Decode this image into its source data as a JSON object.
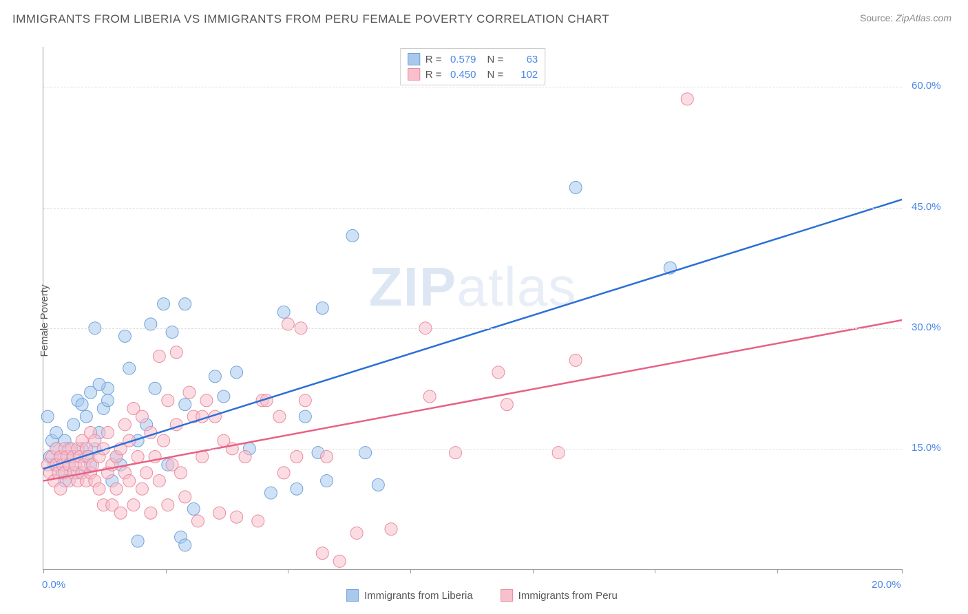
{
  "title": "IMMIGRANTS FROM LIBERIA VS IMMIGRANTS FROM PERU FEMALE POVERTY CORRELATION CHART",
  "source_label": "Source:",
  "source_value": "ZipAtlas.com",
  "ylabel": "Female Poverty",
  "watermark": {
    "zip": "ZIP",
    "atlas": "atlas"
  },
  "chart": {
    "type": "scatter",
    "background_color": "#ffffff",
    "grid_color": "#dddddd",
    "axis_color": "#999999",
    "xlim": [
      0,
      20
    ],
    "ylim": [
      0,
      65
    ],
    "xtick_positions": [
      0,
      2.85,
      5.7,
      8.55,
      11.4,
      14.25,
      17.1,
      20
    ],
    "xtick_labels": {
      "0": "0.0%",
      "20": "20.0%"
    },
    "ytick_positions": [
      15,
      30,
      45,
      60
    ],
    "ytick_labels": {
      "15": "15.0%",
      "30": "30.0%",
      "45": "45.0%",
      "60": "60.0%"
    },
    "series": [
      {
        "id": "liberia",
        "name": "Immigrants from Liberia",
        "color_fill": "#a8c8ec",
        "color_stroke": "#6fa3dd",
        "fill_opacity": 0.55,
        "marker_radius": 9,
        "R": "0.579",
        "N": "63",
        "trend": {
          "x1": 0,
          "y1": 12.5,
          "x2": 20,
          "y2": 46,
          "color": "#2b6fd6",
          "width": 2.5
        },
        "points": [
          [
            0.1,
            19
          ],
          [
            0.15,
            14
          ],
          [
            0.2,
            16
          ],
          [
            0.25,
            13
          ],
          [
            0.3,
            15
          ],
          [
            0.3,
            17
          ],
          [
            0.4,
            14
          ],
          [
            0.45,
            12
          ],
          [
            0.5,
            16
          ],
          [
            0.5,
            11
          ],
          [
            0.6,
            13
          ],
          [
            0.6,
            15
          ],
          [
            0.7,
            14
          ],
          [
            0.7,
            18
          ],
          [
            0.8,
            12
          ],
          [
            0.8,
            21
          ],
          [
            0.9,
            15
          ],
          [
            0.9,
            20.5
          ],
          [
            1.0,
            14
          ],
          [
            1.0,
            19
          ],
          [
            1.1,
            13
          ],
          [
            1.1,
            22
          ],
          [
            1.2,
            15
          ],
          [
            1.2,
            30
          ],
          [
            1.3,
            17
          ],
          [
            1.4,
            20
          ],
          [
            1.5,
            21
          ],
          [
            1.5,
            22.5
          ],
          [
            1.6,
            11
          ],
          [
            1.7,
            14
          ],
          [
            1.8,
            13
          ],
          [
            1.9,
            29
          ],
          [
            2.0,
            25
          ],
          [
            2.2,
            16
          ],
          [
            2.2,
            3.5
          ],
          [
            2.4,
            18
          ],
          [
            2.5,
            30.5
          ],
          [
            2.8,
            33
          ],
          [
            2.9,
            13
          ],
          [
            3.0,
            29.5
          ],
          [
            3.2,
            4
          ],
          [
            3.3,
            20.5
          ],
          [
            3.3,
            33
          ],
          [
            3.5,
            7.5
          ],
          [
            3.3,
            3
          ],
          [
            4.0,
            24
          ],
          [
            4.5,
            24.5
          ],
          [
            4.8,
            15
          ],
          [
            5.3,
            9.5
          ],
          [
            5.6,
            32
          ],
          [
            5.9,
            10
          ],
          [
            6.1,
            19
          ],
          [
            6.4,
            14.5
          ],
          [
            6.5,
            32.5
          ],
          [
            6.6,
            11
          ],
          [
            7.2,
            41.5
          ],
          [
            7.5,
            14.5
          ],
          [
            7.8,
            10.5
          ],
          [
            12.4,
            47.5
          ],
          [
            14.6,
            37.5
          ],
          [
            2.6,
            22.5
          ],
          [
            4.2,
            21.5
          ],
          [
            1.3,
            23
          ]
        ]
      },
      {
        "id": "peru",
        "name": "Immigrants from Peru",
        "color_fill": "#f7c0cc",
        "color_stroke": "#e98ba1",
        "fill_opacity": 0.55,
        "marker_radius": 9,
        "R": "0.450",
        "N": "102",
        "trend": {
          "x1": 0,
          "y1": 11,
          "x2": 20,
          "y2": 31,
          "color": "#e86185",
          "width": 2.5
        },
        "points": [
          [
            0.1,
            13
          ],
          [
            0.15,
            12
          ],
          [
            0.2,
            14
          ],
          [
            0.25,
            11
          ],
          [
            0.3,
            13
          ],
          [
            0.3,
            15
          ],
          [
            0.35,
            12
          ],
          [
            0.4,
            14
          ],
          [
            0.4,
            10
          ],
          [
            0.45,
            13
          ],
          [
            0.5,
            12
          ],
          [
            0.5,
            15
          ],
          [
            0.55,
            14
          ],
          [
            0.6,
            11
          ],
          [
            0.6,
            13
          ],
          [
            0.65,
            15
          ],
          [
            0.7,
            12
          ],
          [
            0.7,
            14
          ],
          [
            0.75,
            13
          ],
          [
            0.8,
            11
          ],
          [
            0.8,
            15
          ],
          [
            0.85,
            14
          ],
          [
            0.9,
            12
          ],
          [
            0.9,
            16
          ],
          [
            0.95,
            13
          ],
          [
            1.0,
            11
          ],
          [
            1.0,
            15
          ],
          [
            1.05,
            14
          ],
          [
            1.1,
            12
          ],
          [
            1.1,
            17
          ],
          [
            1.15,
            13
          ],
          [
            1.2,
            11
          ],
          [
            1.2,
            16
          ],
          [
            1.3,
            10
          ],
          [
            1.3,
            14
          ],
          [
            1.4,
            8
          ],
          [
            1.4,
            15
          ],
          [
            1.5,
            12
          ],
          [
            1.5,
            17
          ],
          [
            1.6,
            13
          ],
          [
            1.6,
            8
          ],
          [
            1.7,
            14
          ],
          [
            1.7,
            10
          ],
          [
            1.8,
            7
          ],
          [
            1.8,
            15
          ],
          [
            1.9,
            12
          ],
          [
            1.9,
            18
          ],
          [
            2.0,
            11
          ],
          [
            2.0,
            16
          ],
          [
            2.1,
            8
          ],
          [
            2.1,
            20
          ],
          [
            2.2,
            14
          ],
          [
            2.3,
            10
          ],
          [
            2.3,
            19
          ],
          [
            2.4,
            12
          ],
          [
            2.5,
            7
          ],
          [
            2.5,
            17
          ],
          [
            2.6,
            14
          ],
          [
            2.7,
            11
          ],
          [
            2.7,
            26.5
          ],
          [
            2.8,
            16
          ],
          [
            2.9,
            8
          ],
          [
            2.9,
            21
          ],
          [
            3.0,
            13
          ],
          [
            3.1,
            18
          ],
          [
            3.1,
            27
          ],
          [
            3.2,
            12
          ],
          [
            3.3,
            9
          ],
          [
            3.4,
            22
          ],
          [
            3.5,
            19
          ],
          [
            3.6,
            6
          ],
          [
            3.7,
            14
          ],
          [
            3.7,
            19
          ],
          [
            3.8,
            21
          ],
          [
            4.0,
            19
          ],
          [
            4.1,
            7
          ],
          [
            4.2,
            16
          ],
          [
            4.4,
            15
          ],
          [
            4.5,
            6.5
          ],
          [
            4.7,
            14
          ],
          [
            5.0,
            6
          ],
          [
            5.1,
            21
          ],
          [
            5.2,
            21
          ],
          [
            5.5,
            19
          ],
          [
            5.6,
            12
          ],
          [
            5.7,
            30.5
          ],
          [
            5.9,
            14
          ],
          [
            6.0,
            30
          ],
          [
            6.1,
            21
          ],
          [
            6.5,
            2
          ],
          [
            6.6,
            14
          ],
          [
            6.9,
            1
          ],
          [
            7.3,
            4.5
          ],
          [
            8.1,
            5
          ],
          [
            8.9,
            30
          ],
          [
            9.0,
            21.5
          ],
          [
            9.6,
            14.5
          ],
          [
            10.6,
            24.5
          ],
          [
            10.8,
            20.5
          ],
          [
            12.0,
            14.5
          ],
          [
            12.4,
            26
          ],
          [
            15.0,
            58.5
          ]
        ]
      }
    ]
  },
  "legend_top": {
    "R_label": "R =",
    "N_label": "N ="
  },
  "legend_bottom_items": [
    "liberia",
    "peru"
  ]
}
